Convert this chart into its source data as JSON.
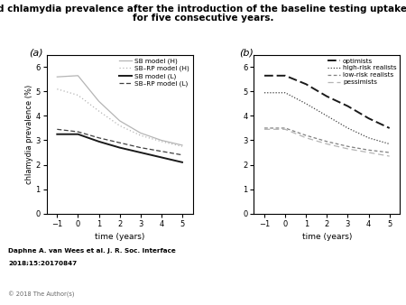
{
  "title_line1": "Estimated chlamydia prevalence after the introduction of the baseline testing uptake scenario",
  "title_line2": "for five consecutive years.",
  "title_fontsize": 7.5,
  "xlabel": "time (years)",
  "ylabel": "chlamydia prevalence (%)",
  "x": [
    -1,
    0,
    1,
    2,
    3,
    4,
    5
  ],
  "panel_a": {
    "label": "(a)",
    "SB_H": [
      5.6,
      5.65,
      4.6,
      3.8,
      3.3,
      3.0,
      2.8
    ],
    "SBRP_H": [
      5.1,
      4.85,
      4.2,
      3.6,
      3.2,
      2.95,
      2.75
    ],
    "SB_L": [
      3.25,
      3.25,
      2.95,
      2.7,
      2.5,
      2.3,
      2.1
    ],
    "SBRP_L": [
      3.45,
      3.35,
      3.1,
      2.9,
      2.7,
      2.55,
      2.4
    ],
    "ylim": [
      0,
      6.5
    ],
    "yticks": [
      0,
      1,
      2,
      3,
      4,
      5,
      6
    ]
  },
  "panel_b": {
    "label": "(b)",
    "optimists": [
      5.65,
      5.65,
      5.3,
      4.8,
      4.4,
      3.9,
      3.5
    ],
    "high_risk": [
      4.95,
      4.95,
      4.5,
      4.0,
      3.5,
      3.1,
      2.85
    ],
    "low_risk": [
      3.5,
      3.5,
      3.2,
      2.95,
      2.75,
      2.6,
      2.5
    ],
    "pessimists": [
      3.45,
      3.45,
      3.1,
      2.85,
      2.65,
      2.5,
      2.35
    ],
    "ylim": [
      0,
      6.5
    ],
    "yticks": [
      0,
      1,
      2,
      3,
      4,
      5,
      6
    ]
  },
  "color_light": "#b5b5b5",
  "color_mid": "#808080",
  "color_dark": "#404040",
  "color_black": "#1a1a1a",
  "footnote1": "Daphne A. van Wees et al. J. R. Soc. Interface",
  "footnote2": "2018;15:20170847",
  "copyright": "© 2018 The Author(s)"
}
